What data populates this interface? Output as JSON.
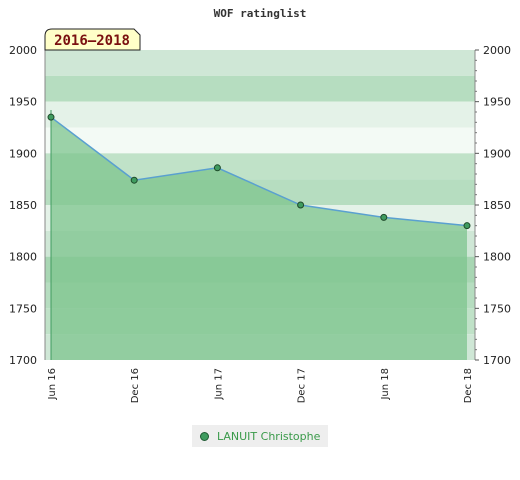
{
  "chart_data": {
    "type": "area",
    "title": "WOF ratinglist",
    "period_label": "2016–2018",
    "x": [
      "Jun 16",
      "Dec 16",
      "Jun 17",
      "Dec 17",
      "Jun 18",
      "Dec 18"
    ],
    "ylim": [
      1700,
      2000
    ],
    "yticks": [
      1700,
      1750,
      1800,
      1850,
      1900,
      1950,
      2000
    ],
    "series": [
      {
        "name": "LANUIT Christophe",
        "values": [
          1935,
          1874,
          1886,
          1850,
          1838,
          1830
        ],
        "line_color": "#5aa0d0",
        "fill_color": "#7ec48e",
        "marker_color": "#3f9b5f"
      }
    ],
    "y_axis_left": true,
    "y_axis_right": true,
    "legend_position": "bottom-center",
    "band_colors": [
      "#cfe7d6",
      "#b6ddc0",
      "#e4f2e8",
      "#f3faf5",
      "#c0e2c8",
      "#a8d6b3"
    ]
  }
}
